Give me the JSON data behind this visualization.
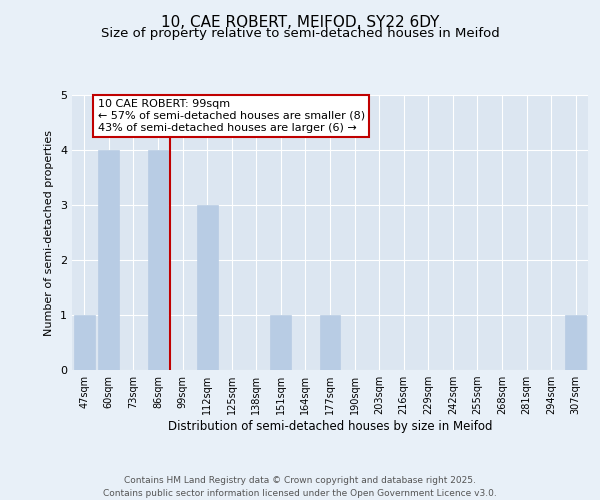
{
  "title1": "10, CAE ROBERT, MEIFOD, SY22 6DY",
  "title2": "Size of property relative to semi-detached houses in Meifod",
  "xlabel": "Distribution of semi-detached houses by size in Meifod",
  "ylabel": "Number of semi-detached properties",
  "categories": [
    "47sqm",
    "60sqm",
    "73sqm",
    "86sqm",
    "99sqm",
    "112sqm",
    "125sqm",
    "138sqm",
    "151sqm",
    "164sqm",
    "177sqm",
    "190sqm",
    "203sqm",
    "216sqm",
    "229sqm",
    "242sqm",
    "255sqm",
    "268sqm",
    "281sqm",
    "294sqm",
    "307sqm"
  ],
  "values": [
    1,
    4,
    0,
    4,
    0,
    3,
    0,
    0,
    1,
    0,
    1,
    0,
    0,
    0,
    0,
    0,
    0,
    0,
    0,
    0,
    1
  ],
  "bar_color": "#b8cce4",
  "bar_edge_color": "#b8cce4",
  "vline_index": 4,
  "vline_color": "#c00000",
  "annotation_text": "10 CAE ROBERT: 99sqm\n← 57% of semi-detached houses are smaller (8)\n43% of semi-detached houses are larger (6) →",
  "annotation_box_color": "white",
  "annotation_box_edgecolor": "#c00000",
  "ylim": [
    0,
    5
  ],
  "yticks": [
    0,
    1,
    2,
    3,
    4,
    5
  ],
  "background_color": "#e8f0f8",
  "plot_bg_color": "#dce6f1",
  "footer": "Contains HM Land Registry data © Crown copyright and database right 2025.\nContains public sector information licensed under the Open Government Licence v3.0.",
  "title_fontsize": 11,
  "subtitle_fontsize": 9.5,
  "ylabel_fontsize": 8,
  "xlabel_fontsize": 8.5,
  "annotation_fontsize": 8,
  "footer_fontsize": 6.5,
  "tick_fontsize": 7
}
